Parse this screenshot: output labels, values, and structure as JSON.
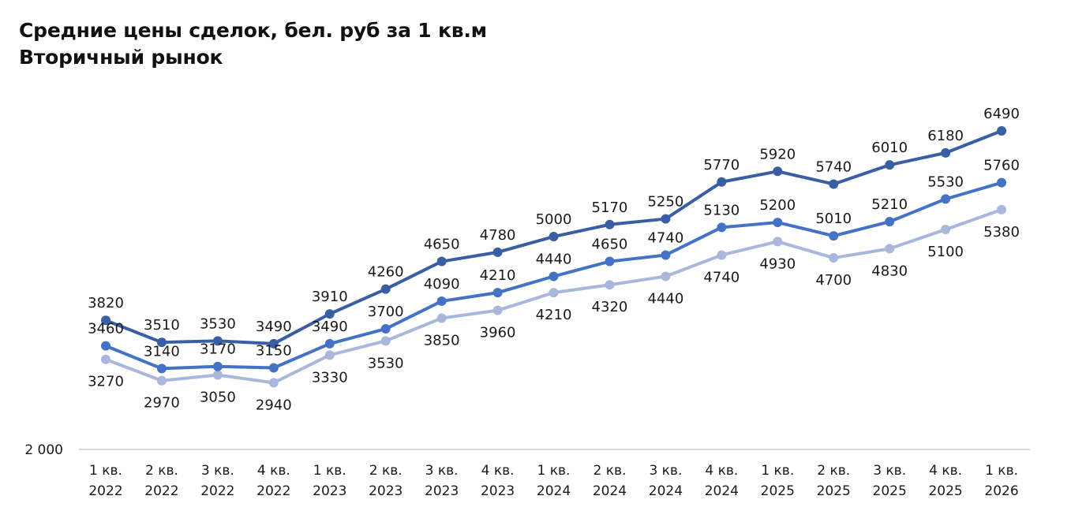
{
  "header": {
    "title_line1": "Средние цены сделок, бел. руб за 1 кв.м",
    "title_line2": "Вторичный рынок"
  },
  "colors": {
    "series_top": "#3a5ea3",
    "series_mid": "#4472c4",
    "series_low": "#a9b7dc",
    "axis": "#d9d9d9"
  },
  "chart_data": {
    "type": "line",
    "title": "Средние цены сделок, бел. руб за 1 кв.м — Вторичный рынок",
    "xlabel": "",
    "ylabel": "",
    "ylim": [
      2000,
      6600
    ],
    "y_ticks": [
      "2 000"
    ],
    "grid": false,
    "legend": "none",
    "categories": [
      [
        "1 кв.",
        "2022"
      ],
      [
        "2 кв.",
        "2022"
      ],
      [
        "3 кв.",
        "2022"
      ],
      [
        "4 кв.",
        "2022"
      ],
      [
        "1 кв.",
        "2023"
      ],
      [
        "2 кв.",
        "2023"
      ],
      [
        "3 кв.",
        "2023"
      ],
      [
        "4 кв.",
        "2023"
      ],
      [
        "1 кв.",
        "2024"
      ],
      [
        "2 кв.",
        "2024"
      ],
      [
        "3 кв.",
        "2024"
      ],
      [
        "4 кв.",
        "2024"
      ],
      [
        "1 кв.",
        "2025"
      ],
      [
        "2 кв.",
        "2025"
      ],
      [
        "3 кв.",
        "2025"
      ],
      [
        "4 кв.",
        "2025"
      ],
      [
        "1 кв.",
        "2026"
      ]
    ],
    "series": [
      {
        "name": "upper",
        "color": "#3a5ea3",
        "label_pos": "above",
        "values": [
          3820,
          3510,
          3530,
          3490,
          3910,
          4260,
          4650,
          4780,
          5000,
          5170,
          5250,
          5770,
          5920,
          5740,
          6010,
          6180,
          6490
        ]
      },
      {
        "name": "middle",
        "color": "#4472c4",
        "label_pos": "above",
        "values": [
          3460,
          3140,
          3170,
          3150,
          3490,
          3700,
          4090,
          4210,
          4440,
          4650,
          4740,
          5130,
          5200,
          5010,
          5210,
          5530,
          5760
        ]
      },
      {
        "name": "lower",
        "color": "#a9b7dc",
        "label_pos": "below",
        "values": [
          3270,
          2970,
          3050,
          2940,
          3330,
          3530,
          3850,
          3960,
          4210,
          4320,
          4440,
          4740,
          4930,
          4700,
          4830,
          5100,
          5380
        ]
      }
    ]
  }
}
